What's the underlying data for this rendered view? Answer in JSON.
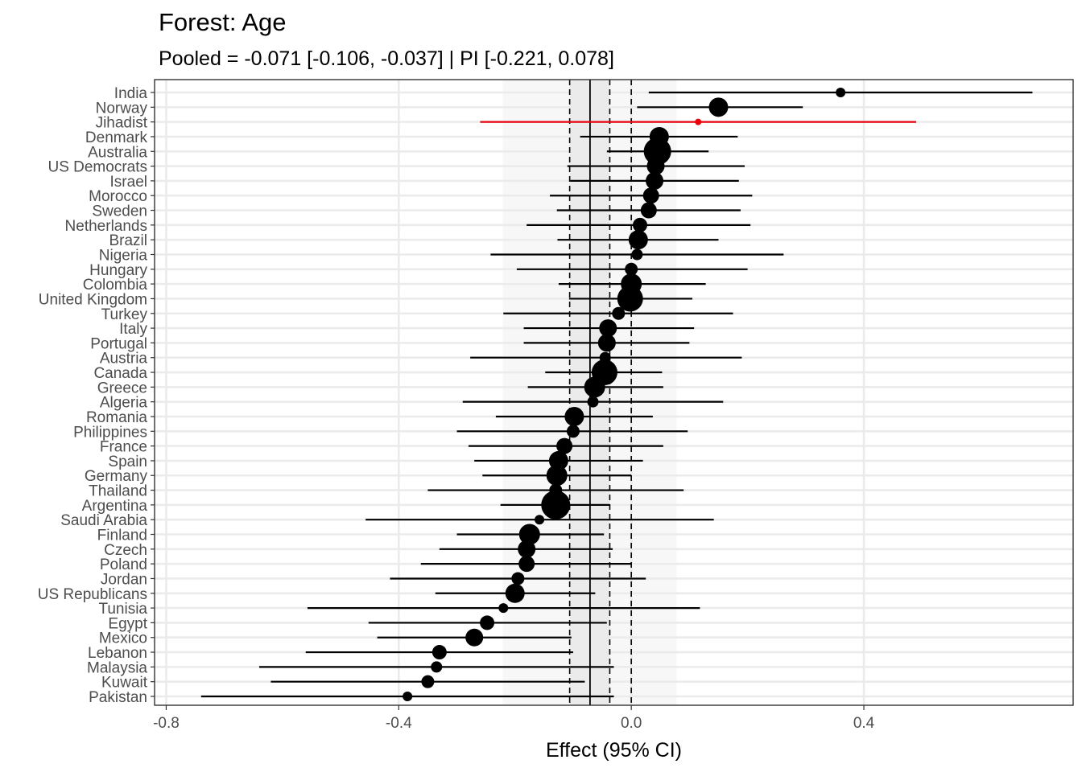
{
  "chart_data": {
    "type": "forest",
    "title": "Forest: Age",
    "subtitle": "Pooled = -0.071 [-0.106, -0.037] | PI [-0.221, 0.078]",
    "xlabel": "Effect (95% CI)",
    "ylabel": "",
    "xlim": [
      -0.82,
      0.76
    ],
    "xticks": [
      -0.8,
      -0.4,
      0.0,
      0.4
    ],
    "xtick_labels": [
      "-0.8",
      "-0.4",
      "0.0",
      "0.4"
    ],
    "grid": true,
    "pooled": {
      "estimate": -0.071,
      "ci_low": -0.106,
      "ci_high": -0.037,
      "pi_low": -0.221,
      "pi_high": 0.078
    },
    "reference_line": 0.0,
    "colors": {
      "default": "#000000",
      "highlight": "#e8000b",
      "ci_band": "#ebebeb",
      "pi_band": "#f7f7f7",
      "grid": "#ebebeb"
    },
    "studies": [
      {
        "label": "India",
        "estimate": 0.36,
        "lower": 0.03,
        "upper": 0.69,
        "weight": 6
      },
      {
        "label": "Norway",
        "estimate": 0.15,
        "lower": 0.01,
        "upper": 0.295,
        "weight": 12
      },
      {
        "label": "Jihadist",
        "estimate": 0.115,
        "lower": -0.26,
        "upper": 0.49,
        "weight": 4,
        "highlight": true
      },
      {
        "label": "Denmark",
        "estimate": 0.048,
        "lower": -0.088,
        "upper": 0.183,
        "weight": 12
      },
      {
        "label": "Australia",
        "estimate": 0.045,
        "lower": -0.042,
        "upper": 0.133,
        "weight": 17
      },
      {
        "label": "US Democrats",
        "estimate": 0.042,
        "lower": -0.11,
        "upper": 0.195,
        "weight": 11
      },
      {
        "label": "Israel",
        "estimate": 0.04,
        "lower": -0.105,
        "upper": 0.185,
        "weight": 11
      },
      {
        "label": "Morocco",
        "estimate": 0.034,
        "lower": -0.14,
        "upper": 0.208,
        "weight": 10
      },
      {
        "label": "Sweden",
        "estimate": 0.03,
        "lower": -0.128,
        "upper": 0.188,
        "weight": 10
      },
      {
        "label": "Netherlands",
        "estimate": 0.015,
        "lower": -0.18,
        "upper": 0.205,
        "weight": 9
      },
      {
        "label": "Brazil",
        "estimate": 0.012,
        "lower": -0.127,
        "upper": 0.15,
        "weight": 12
      },
      {
        "label": "Nigeria",
        "estimate": 0.01,
        "lower": -0.242,
        "upper": 0.262,
        "weight": 7
      },
      {
        "label": "Hungary",
        "estimate": 0.0,
        "lower": -0.197,
        "upper": 0.2,
        "weight": 8
      },
      {
        "label": "Colombia",
        "estimate": 0.0,
        "lower": -0.125,
        "upper": 0.128,
        "weight": 13
      },
      {
        "label": "United Kingdom",
        "estimate": -0.002,
        "lower": -0.107,
        "upper": 0.105,
        "weight": 16
      },
      {
        "label": "Turkey",
        "estimate": -0.022,
        "lower": -0.22,
        "upper": 0.175,
        "weight": 8
      },
      {
        "label": "Italy",
        "estimate": -0.04,
        "lower": -0.185,
        "upper": 0.108,
        "weight": 11
      },
      {
        "label": "Portugal",
        "estimate": -0.042,
        "lower": -0.185,
        "upper": 0.1,
        "weight": 11
      },
      {
        "label": "Austria",
        "estimate": -0.045,
        "lower": -0.277,
        "upper": 0.19,
        "weight": 7
      },
      {
        "label": "Canada",
        "estimate": -0.046,
        "lower": -0.148,
        "upper": 0.053,
        "weight": 16
      },
      {
        "label": "Greece",
        "estimate": -0.063,
        "lower": -0.178,
        "upper": 0.055,
        "weight": 13
      },
      {
        "label": "Algeria",
        "estimate": -0.066,
        "lower": -0.29,
        "upper": 0.158,
        "weight": 7
      },
      {
        "label": "Romania",
        "estimate": -0.098,
        "lower": -0.233,
        "upper": 0.037,
        "weight": 12
      },
      {
        "label": "Philippines",
        "estimate": -0.1,
        "lower": -0.3,
        "upper": 0.097,
        "weight": 8
      },
      {
        "label": "France",
        "estimate": -0.115,
        "lower": -0.28,
        "upper": 0.055,
        "weight": 10
      },
      {
        "label": "Spain",
        "estimate": -0.125,
        "lower": -0.27,
        "upper": 0.02,
        "weight": 12
      },
      {
        "label": "Germany",
        "estimate": -0.128,
        "lower": -0.256,
        "upper": 0.0,
        "weight": 13
      },
      {
        "label": "Thailand",
        "estimate": -0.13,
        "lower": -0.35,
        "upper": 0.09,
        "weight": 8
      },
      {
        "label": "Argentina",
        "estimate": -0.13,
        "lower": -0.225,
        "upper": -0.037,
        "weight": 18
      },
      {
        "label": "Saudi Arabia",
        "estimate": -0.158,
        "lower": -0.457,
        "upper": 0.142,
        "weight": 6
      },
      {
        "label": "Finland",
        "estimate": -0.175,
        "lower": -0.3,
        "upper": -0.047,
        "weight": 13
      },
      {
        "label": "Czech",
        "estimate": -0.18,
        "lower": -0.33,
        "upper": -0.032,
        "weight": 11
      },
      {
        "label": "Poland",
        "estimate": -0.18,
        "lower": -0.362,
        "upper": 0.0,
        "weight": 10
      },
      {
        "label": "Jordan",
        "estimate": -0.195,
        "lower": -0.415,
        "upper": 0.025,
        "weight": 8
      },
      {
        "label": "US Republicans",
        "estimate": -0.2,
        "lower": -0.337,
        "upper": -0.062,
        "weight": 12
      },
      {
        "label": "Tunisia",
        "estimate": -0.22,
        "lower": -0.557,
        "upper": 0.118,
        "weight": 6
      },
      {
        "label": "Egypt",
        "estimate": -0.248,
        "lower": -0.452,
        "upper": -0.042,
        "weight": 9
      },
      {
        "label": "Mexico",
        "estimate": -0.27,
        "lower": -0.437,
        "upper": -0.103,
        "weight": 11
      },
      {
        "label": "Lebanon",
        "estimate": -0.33,
        "lower": -0.56,
        "upper": -0.1,
        "weight": 9
      },
      {
        "label": "Malaysia",
        "estimate": -0.335,
        "lower": -0.64,
        "upper": -0.03,
        "weight": 7
      },
      {
        "label": "Kuwait",
        "estimate": -0.35,
        "lower": -0.62,
        "upper": -0.08,
        "weight": 8
      },
      {
        "label": "Pakistan",
        "estimate": -0.385,
        "lower": -0.74,
        "upper": -0.03,
        "weight": 6
      }
    ]
  }
}
